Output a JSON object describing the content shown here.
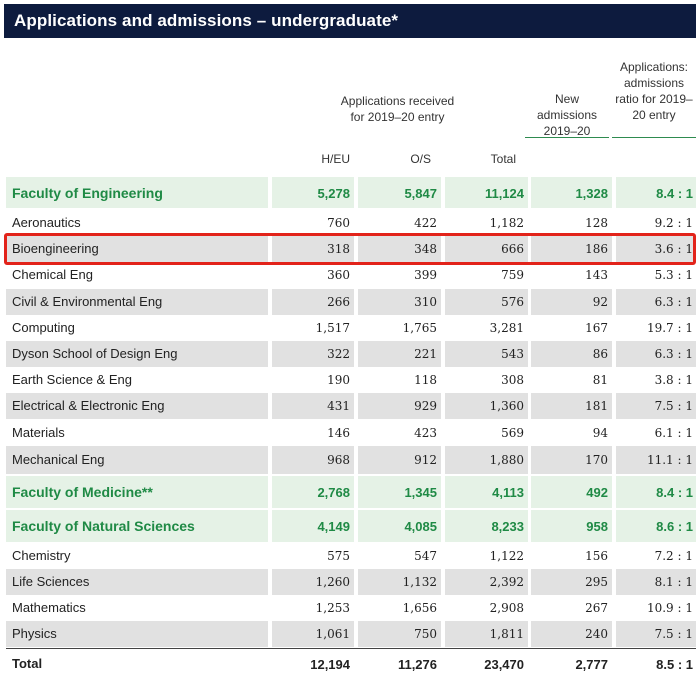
{
  "title": "Applications and admissions – undergraduate*",
  "headers": {
    "applications_received": "Applications received for 2019–20 entry",
    "new_admissions": "New admissions 2019–20",
    "ratio": "Applications: admissions ratio for 2019–20 entry",
    "heu": "H/EU",
    "os": "O/S",
    "total": "Total"
  },
  "rows": [
    {
      "label": "Faculty of Engineering",
      "heu": "5,278",
      "os": "5,847",
      "total": "11,124",
      "admissions": "1,328",
      "ratio": "8.4 : 1",
      "style": "green"
    },
    {
      "label": "Aeronautics",
      "heu": "760",
      "os": "422",
      "total": "1,182",
      "admissions": "128",
      "ratio": "9.2 : 1",
      "style": "white"
    },
    {
      "label": "Bioengineering",
      "heu": "318",
      "os": "348",
      "total": "666",
      "admissions": "186",
      "ratio": "3.6 : 1",
      "style": "grey"
    },
    {
      "label": "Chemical Eng",
      "heu": "360",
      "os": "399",
      "total": "759",
      "admissions": "143",
      "ratio": "5.3 : 1",
      "style": "white"
    },
    {
      "label": "Civil & Environmental Eng",
      "heu": "266",
      "os": "310",
      "total": "576",
      "admissions": "92",
      "ratio": "6.3 : 1",
      "style": "grey"
    },
    {
      "label": "Computing",
      "heu": "1,517",
      "os": "1,765",
      "total": "3,281",
      "admissions": "167",
      "ratio": "19.7 : 1",
      "style": "white"
    },
    {
      "label": "Dyson School of Design Eng",
      "heu": "322",
      "os": "221",
      "total": "543",
      "admissions": "86",
      "ratio": "6.3 : 1",
      "style": "grey"
    },
    {
      "label": "Earth Science & Eng",
      "heu": "190",
      "os": "118",
      "total": "308",
      "admissions": "81",
      "ratio": "3.8 : 1",
      "style": "white"
    },
    {
      "label": "Electrical & Electronic Eng",
      "heu": "431",
      "os": "929",
      "total": "1,360",
      "admissions": "181",
      "ratio": "7.5 : 1",
      "style": "grey"
    },
    {
      "label": "Materials",
      "heu": "146",
      "os": "423",
      "total": "569",
      "admissions": "94",
      "ratio": "6.1 : 1",
      "style": "white"
    },
    {
      "label": "Mechanical Eng",
      "heu": "968",
      "os": "912",
      "total": "1,880",
      "admissions": "170",
      "ratio": "11.1 : 1",
      "style": "grey"
    },
    {
      "label": "Faculty of Medicine**",
      "heu": "2,768",
      "os": "1,345",
      "total": "4,113",
      "admissions": "492",
      "ratio": "8.4 : 1",
      "style": "green"
    },
    {
      "label": "Faculty of Natural Sciences",
      "heu": "4,149",
      "os": "4,085",
      "total": "8,233",
      "admissions": "958",
      "ratio": "8.6 : 1",
      "style": "green"
    },
    {
      "label": "Chemistry",
      "heu": "575",
      "os": "547",
      "total": "1,122",
      "admissions": "156",
      "ratio": "7.2 : 1",
      "style": "white"
    },
    {
      "label": "Life Sciences",
      "heu": "1,260",
      "os": "1,132",
      "total": "2,392",
      "admissions": "295",
      "ratio": "8.1 : 1",
      "style": "grey"
    },
    {
      "label": "Mathematics",
      "heu": "1,253",
      "os": "1,656",
      "total": "2,908",
      "admissions": "267",
      "ratio": "10.9 : 1",
      "style": "white"
    },
    {
      "label": "Physics",
      "heu": "1,061",
      "os": "750",
      "total": "1,811",
      "admissions": "240",
      "ratio": "7.5 : 1",
      "style": "grey"
    },
    {
      "label": "Total",
      "heu": "12,194",
      "os": "11,276",
      "total": "23,470",
      "admissions": "2,777",
      "ratio": "8.5 : 1",
      "style": "total"
    }
  ],
  "highlighted_row": "Bioengineering",
  "colors": {
    "title_bg": "#0d1b3e",
    "faculty_green": "#1f8a45",
    "row_grey": "#e1e1e1",
    "row_green": "#e5f2e6",
    "highlight_red": "#e2231a"
  }
}
